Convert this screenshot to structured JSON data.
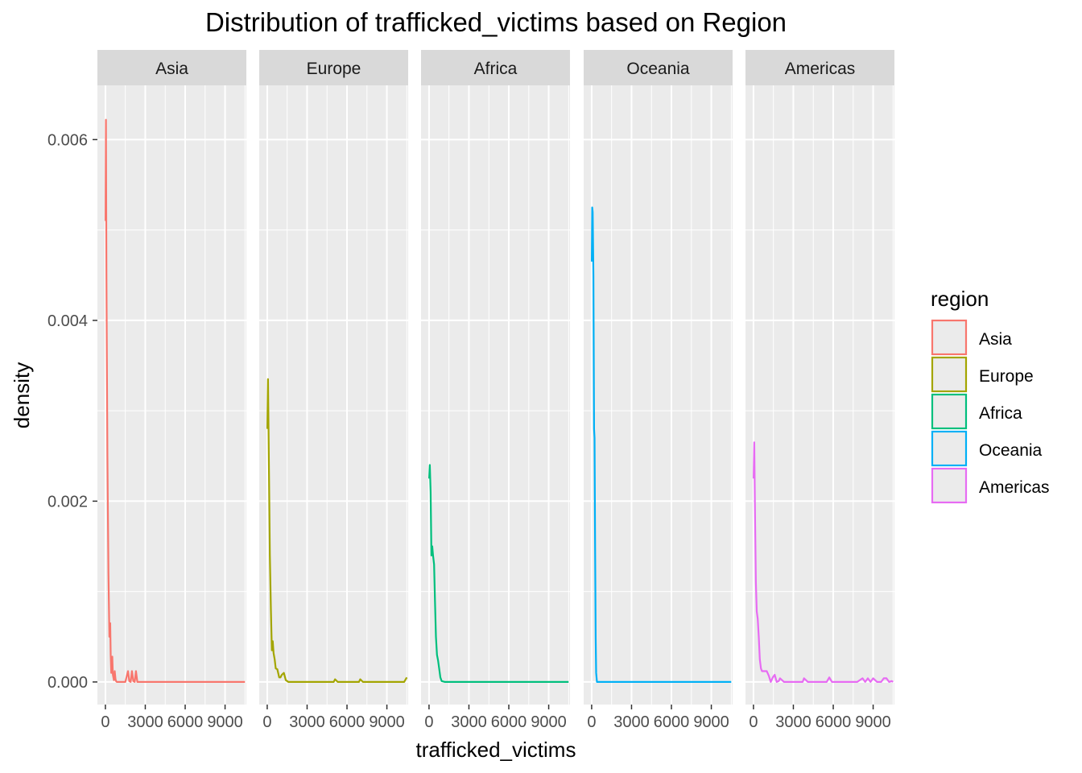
{
  "chart_data": {
    "type": "line",
    "title": "Distribution of trafficked_victims based on Region",
    "xlabel": "trafficked_victims",
    "ylabel": "density",
    "xlim": [
      -600,
      10600
    ],
    "ylim": [
      -0.00025,
      0.0066
    ],
    "x_ticks": [
      0,
      3000,
      6000,
      9000
    ],
    "x_tick_labels": [
      "0",
      "3000",
      "6000",
      "9000"
    ],
    "y_ticks": [
      0,
      0.002,
      0.004,
      0.006
    ],
    "y_tick_labels": [
      "0.000",
      "0.002",
      "0.004",
      "0.006"
    ],
    "grid": true,
    "facet": "region",
    "legend": {
      "title": "region",
      "position": "right"
    },
    "series": [
      {
        "name": "Asia",
        "color": "#F8766D",
        "x": [
          10,
          40,
          80,
          150,
          230,
          300,
          360,
          400,
          440,
          480,
          520,
          560,
          640,
          700,
          760,
          800,
          860,
          920,
          1000,
          1200,
          1500,
          1700,
          1800,
          1900,
          2000,
          2100,
          2200,
          2300,
          2400,
          2500,
          3000,
          4000,
          6000,
          8000,
          10500
        ],
        "y": [
          0.0051,
          0.00622,
          0.0045,
          0.0025,
          0.0012,
          0.0005,
          0.00065,
          0.0003,
          0.0001,
          0.00012,
          0.00028,
          8e-05,
          2e-05,
          0.00012,
          3e-05,
          1e-05,
          0.0,
          0.0,
          0.0,
          0.0,
          0.0,
          0.00012,
          1e-05,
          0.0,
          0.00012,
          1e-05,
          0.0,
          0.00012,
          0.0,
          0.0,
          0.0,
          0.0,
          0.0,
          0.0,
          0.0
        ]
      },
      {
        "name": "Europe",
        "color": "#A3A500",
        "x": [
          10,
          60,
          120,
          200,
          280,
          350,
          420,
          480,
          560,
          640,
          760,
          900,
          1000,
          1100,
          1250,
          1400,
          1600,
          2000,
          3000,
          4500,
          5000,
          5100,
          5300,
          6500,
          6900,
          7000,
          7200,
          8000,
          9500,
          10300,
          10500
        ],
        "y": [
          0.0028,
          0.00335,
          0.0025,
          0.0014,
          0.0008,
          0.00035,
          0.00045,
          0.00032,
          0.00025,
          0.00015,
          0.00014,
          5e-05,
          5e-05,
          8e-05,
          0.0001,
          2e-05,
          0.0,
          0.0,
          0.0,
          0.0,
          0.0,
          3e-05,
          0.0,
          0.0,
          0.0,
          3e-05,
          0.0,
          0.0,
          0.0,
          0.0,
          5e-05
        ]
      },
      {
        "name": "Africa",
        "color": "#00BF7D",
        "x": [
          10,
          60,
          120,
          180,
          240,
          300,
          380,
          450,
          520,
          600,
          680,
          760,
          850,
          950,
          1200,
          2000,
          4000,
          6000,
          8000,
          10500
        ],
        "y": [
          0.00225,
          0.0024,
          0.0021,
          0.0014,
          0.0015,
          0.0014,
          0.0013,
          0.0009,
          0.0005,
          0.0003,
          0.00024,
          0.00015,
          5e-05,
          1e-05,
          0.0,
          0.0,
          0.0,
          0.0,
          0.0,
          0.0
        ]
      },
      {
        "name": "Oceania",
        "color": "#00B0F6",
        "x": [
          10,
          40,
          80,
          130,
          180,
          220,
          260,
          300,
          340,
          400,
          500,
          1000,
          3000,
          6000,
          9000,
          10500
        ],
        "y": [
          0.00465,
          0.00525,
          0.0052,
          0.0045,
          0.0028,
          0.0027,
          0.0015,
          0.0005,
          0.0001,
          0.0,
          0.0,
          0.0,
          0.0,
          0.0,
          0.0,
          0.0
        ]
      },
      {
        "name": "Americas",
        "color": "#E76BF3",
        "x": [
          10,
          60,
          120,
          180,
          250,
          320,
          400,
          480,
          560,
          640,
          760,
          900,
          1000,
          1150,
          1300,
          1450,
          1600,
          1750,
          1900,
          2000,
          2300,
          2800,
          3200,
          3500,
          3700,
          3800,
          4100,
          5000,
          5500,
          5700,
          5900,
          7000,
          7800,
          8200,
          8400,
          8600,
          8800,
          9000,
          9300,
          9600,
          9800,
          10000,
          10200,
          10400,
          10500
        ],
        "y": [
          0.00225,
          0.00265,
          0.0018,
          0.0011,
          0.00078,
          0.0007,
          0.0005,
          0.00025,
          0.00015,
          0.00012,
          0.00012,
          0.00012,
          0.00012,
          7e-05,
          0.0,
          5e-05,
          8e-05,
          0.0,
          1e-05,
          4e-05,
          0.0,
          0.0,
          0.0,
          0.0,
          0.0,
          4e-05,
          0.0,
          0.0,
          0.0,
          5e-05,
          0.0,
          0.0,
          0.0,
          4e-05,
          0.0,
          4e-05,
          0.0,
          4e-05,
          0.0,
          0.0,
          4e-05,
          4e-05,
          0.0,
          1e-05,
          0.0
        ]
      }
    ]
  }
}
